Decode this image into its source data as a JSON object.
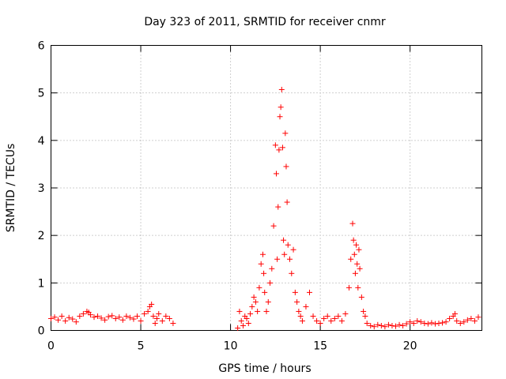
{
  "chart_data": {
    "type": "scatter",
    "title": "Day 323 of 2011, SRMTID for receiver cnmr",
    "xlabel": "GPS time / hours",
    "ylabel": "SRMTID / TECUs",
    "xlim": [
      0,
      24
    ],
    "ylim": [
      0,
      6
    ],
    "xticks": [
      "0",
      "5",
      "10",
      "15",
      "20"
    ],
    "yticks": [
      "0",
      "1",
      "2",
      "3",
      "4",
      "5",
      "6"
    ],
    "grid": true,
    "marker": "+",
    "color": "#ff0000",
    "series": [
      {
        "name": "SRMTID",
        "x": [
          0.0,
          0.2,
          0.4,
          0.6,
          0.8,
          1.0,
          1.2,
          1.4,
          1.6,
          1.8,
          2.0,
          2.1,
          2.2,
          2.4,
          2.6,
          2.8,
          3.0,
          3.2,
          3.4,
          3.6,
          3.8,
          4.0,
          4.2,
          4.4,
          4.6,
          4.8,
          5.0,
          5.2,
          5.4,
          5.5,
          5.6,
          5.7,
          5.8,
          5.9,
          6.0,
          6.2,
          6.4,
          6.6,
          6.8,
          10.4,
          10.5,
          10.6,
          10.7,
          10.8,
          10.9,
          11.0,
          11.1,
          11.2,
          11.3,
          11.4,
          11.5,
          11.6,
          11.7,
          11.8,
          11.85,
          11.9,
          12.0,
          12.1,
          12.2,
          12.3,
          12.4,
          12.5,
          12.55,
          12.6,
          12.65,
          12.7,
          12.75,
          12.8,
          12.85,
          12.9,
          12.95,
          13.0,
          13.05,
          13.1,
          13.15,
          13.2,
          13.3,
          13.4,
          13.5,
          13.6,
          13.7,
          13.8,
          13.9,
          14.0,
          14.2,
          14.4,
          14.6,
          14.8,
          15.0,
          15.2,
          15.4,
          15.6,
          15.8,
          16.0,
          16.2,
          16.4,
          16.6,
          16.7,
          16.8,
          16.85,
          16.9,
          16.95,
          17.0,
          17.05,
          17.1,
          17.15,
          17.2,
          17.3,
          17.4,
          17.5,
          17.6,
          17.8,
          18.0,
          18.2,
          18.4,
          18.6,
          18.8,
          19.0,
          19.2,
          19.4,
          19.6,
          19.8,
          20.0,
          20.2,
          20.4,
          20.6,
          20.8,
          21.0,
          21.2,
          21.4,
          21.6,
          21.8,
          22.0,
          22.2,
          22.4,
          22.5,
          22.6,
          22.8,
          23.0,
          23.2,
          23.4,
          23.6,
          23.8
        ],
        "y": [
          0.25,
          0.28,
          0.22,
          0.3,
          0.2,
          0.27,
          0.24,
          0.18,
          0.3,
          0.35,
          0.4,
          0.38,
          0.33,
          0.28,
          0.3,
          0.26,
          0.22,
          0.29,
          0.31,
          0.25,
          0.28,
          0.22,
          0.3,
          0.27,
          0.24,
          0.3,
          0.2,
          0.35,
          0.4,
          0.5,
          0.55,
          0.3,
          0.15,
          0.25,
          0.35,
          0.2,
          0.3,
          0.25,
          0.15,
          0.05,
          0.4,
          0.2,
          0.1,
          0.3,
          0.25,
          0.15,
          0.35,
          0.5,
          0.7,
          0.6,
          0.4,
          0.9,
          1.4,
          1.6,
          1.2,
          0.8,
          0.4,
          0.6,
          1.0,
          1.3,
          2.2,
          3.9,
          3.3,
          1.5,
          2.6,
          3.8,
          4.5,
          4.7,
          5.07,
          3.85,
          1.9,
          1.6,
          4.15,
          3.45,
          2.7,
          1.8,
          1.5,
          1.2,
          1.7,
          0.8,
          0.6,
          0.4,
          0.3,
          0.2,
          0.5,
          0.8,
          0.3,
          0.2,
          0.15,
          0.25,
          0.3,
          0.2,
          0.25,
          0.3,
          0.2,
          0.35,
          0.9,
          1.5,
          2.25,
          1.9,
          1.6,
          1.2,
          1.8,
          1.4,
          0.9,
          1.7,
          1.3,
          0.7,
          0.4,
          0.3,
          0.15,
          0.1,
          0.08,
          0.12,
          0.1,
          0.08,
          0.12,
          0.1,
          0.09,
          0.12,
          0.1,
          0.14,
          0.18,
          0.15,
          0.2,
          0.18,
          0.15,
          0.14,
          0.16,
          0.14,
          0.15,
          0.16,
          0.18,
          0.25,
          0.3,
          0.35,
          0.2,
          0.15,
          0.18,
          0.22,
          0.25,
          0.2,
          0.28
        ]
      }
    ]
  }
}
